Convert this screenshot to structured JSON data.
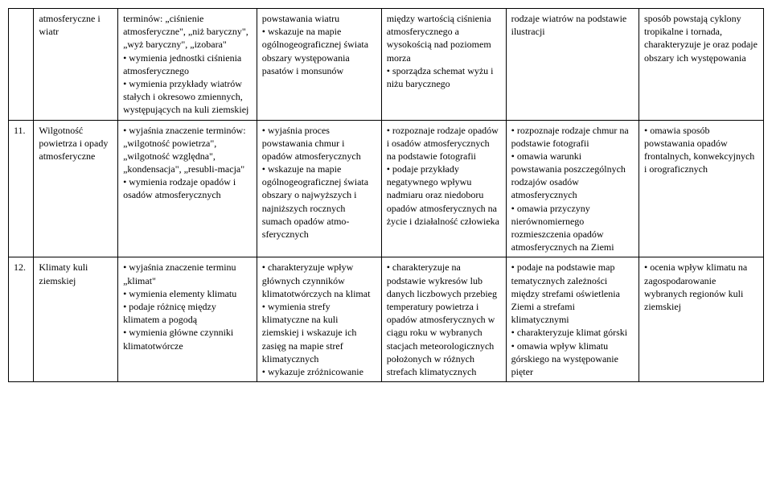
{
  "table": {
    "rows": [
      {
        "num": "",
        "topic": "atmosferyczne i wiatr",
        "col2": "terminów: „ciśnienie atmosferyczne\", „niż baryczny\", „wyż baryczny\", „izobara\"\n• wymienia jednostki ciśnienia atmosferycznego\n• wymienia przykłady wiatrów stałych i okresowo zmiennych, występujących na kuli ziemskiej",
        "col3": "powstawania wiatru\n• wskazuje na mapie ogólnogeograficznej świata obszary występowania pasatów i monsunów",
        "col4": "między wartością ciśnienia atmosferycznego a wysokością nad poziomem morza\n• sporządza schemat wyżu i niżu barycznego",
        "col5": "rodzaje wiatrów na podstawie ilustracji",
        "col6": "sposób powstają cyklony tropikalne i tornada, charakteryzuje je oraz podaje obszary ich występowania"
      },
      {
        "num": "11.",
        "topic": "Wilgotność powietrza i opady atmosferyczne",
        "col2": "• wyjaśnia znaczenie terminów: „wilgotność powietrza\", „wilgotność względna\", „kondensacja\", „resubli-macja\"\n• wymienia rodzaje opadów i osadów atmosferycznych",
        "col3": "• wyjaśnia proces powstawania chmur i opadów atmosferycznych\n• wskazuje na mapie ogólnogeograficznej świata obszary o najwyższych i najniższych rocznych sumach opadów atmo-sferycznych",
        "col4": "• rozpoznaje rodzaje opadów i osadów atmosferycznych na podstawie fotografii\n• podaje przykłady negatywnego wpływu nadmiaru oraz niedoboru opadów atmosferycznych na życie i działalność człowieka",
        "col5": "• rozpoznaje rodzaje chmur na podstawie fotografii\n• omawia warunki powstawania poszczególnych rodzajów osadów atmosferycznych\n• omawia przyczyny nierównomiernego rozmieszczenia opadów atmosferycznych na Ziemi",
        "col6": "• omawia sposób powstawania opadów frontalnych, konwekcyjnych i orograficznych"
      },
      {
        "num": "12.",
        "topic": "Klimaty kuli ziemskiej",
        "col2": "• wyjaśnia znaczenie terminu „klimat\"\n• wymienia elementy klimatu\n• podaje różnicę między klimatem a pogodą\n• wymienia główne czynniki klimatotwórcze",
        "col3": "• charakteryzuje wpływ głównych czynników klimatotwórczych na klimat\n• wymienia strefy klimatyczne na kuli ziemskiej i wskazuje ich zasięg na mapie stref klimatycznych\n• wykazuje zróżnicowanie",
        "col4": "• charakteryzuje na podstawie wykresów lub danych liczbowych przebieg temperatury powietrza i opadów atmosferycznych w ciągu roku w wybranych stacjach meteorologicznych położonych w różnych strefach klimatycznych",
        "col5": "• podaje na podstawie map tematycznych zależności między strefami oświetlenia Ziemi a strefami klimatycznymi\n• charakteryzuje klimat górski\n• omawia wpływ klimatu górskiego na występowanie pięter",
        "col6": "• ocenia wpływ klimatu na zagospodarowanie wybranych regionów kuli ziemskiej"
      }
    ]
  }
}
